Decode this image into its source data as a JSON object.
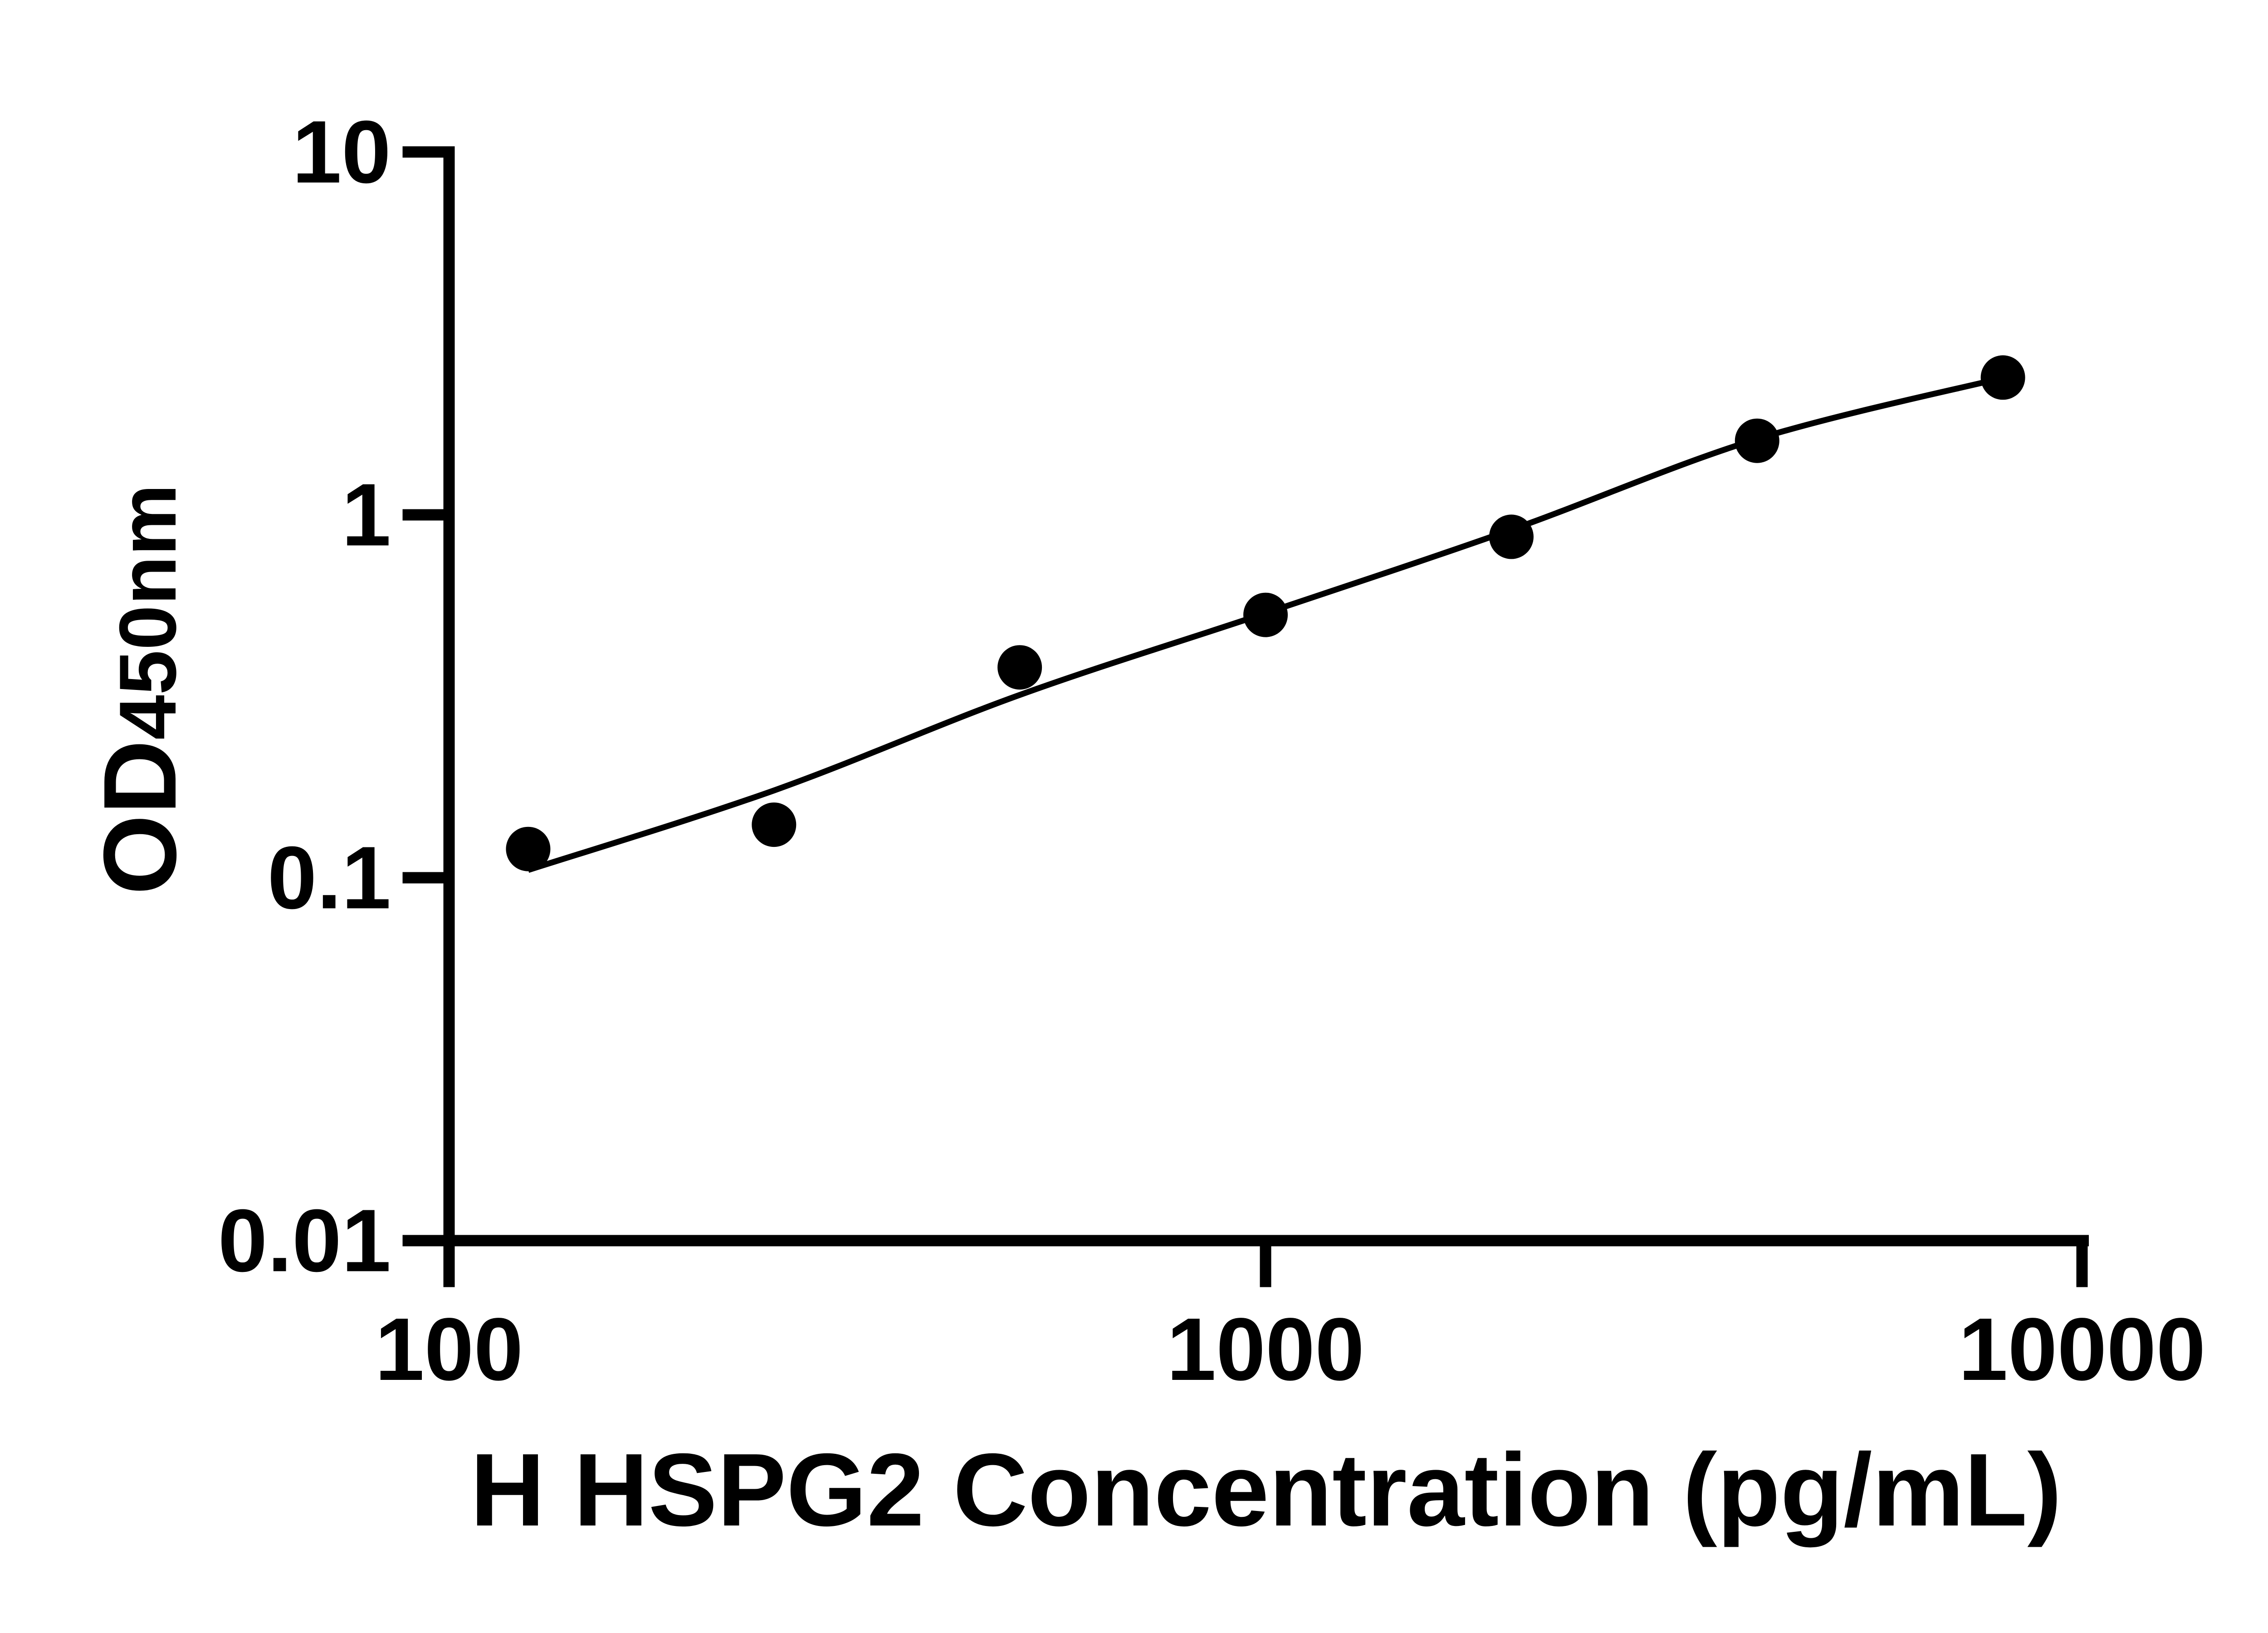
{
  "figure": {
    "background_color": "#ffffff",
    "axis_color": "#000000"
  },
  "chart_data": {
    "type": "scatter",
    "subtype": "log-log standard curve with fitted line",
    "title": "",
    "xlabel": "H HSPG2 Concentration (pg/mL)",
    "ylabel_main": "OD",
    "ylabel_sub": "450nm",
    "x_scale": "log",
    "y_scale": "log",
    "xlim": [
      100,
      10000
    ],
    "ylim": [
      0.01,
      10
    ],
    "x_tick_values": [
      100,
      1000,
      10000
    ],
    "x_tick_labels": [
      "100",
      "1000",
      "10000"
    ],
    "y_tick_values": [
      10,
      1,
      0.1,
      0.01
    ],
    "y_tick_labels": [
      "10",
      "1",
      "0.1",
      "0.01"
    ],
    "grid": "off",
    "legend": "none",
    "marker_color": "#000000",
    "line_color": "#000000",
    "points": [
      {
        "x": 125,
        "y": 0.12
      },
      {
        "x": 250,
        "y": 0.14
      },
      {
        "x": 500,
        "y": 0.38
      },
      {
        "x": 1000,
        "y": 0.53
      },
      {
        "x": 2000,
        "y": 0.87
      },
      {
        "x": 4000,
        "y": 1.6
      },
      {
        "x": 8000,
        "y": 2.39
      }
    ],
    "fit_curve": [
      {
        "x": 125,
        "y": 0.105
      },
      {
        "x": 250,
        "y": 0.174
      },
      {
        "x": 500,
        "y": 0.319
      },
      {
        "x": 1000,
        "y": 0.536
      },
      {
        "x": 2000,
        "y": 0.91
      },
      {
        "x": 4000,
        "y": 1.618
      },
      {
        "x": 8000,
        "y": 2.385
      }
    ]
  }
}
